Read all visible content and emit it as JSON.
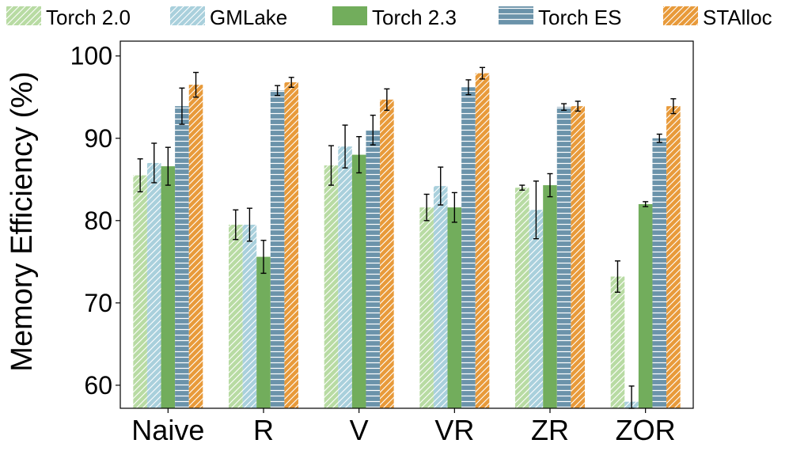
{
  "chart_data": {
    "type": "bar",
    "title": "",
    "xlabel": "",
    "ylabel": "Memory Efficiency (%)",
    "ylim": [
      57.2,
      101.8
    ],
    "yticks": [
      60,
      70,
      80,
      90,
      100
    ],
    "categories": [
      "Naive",
      "R",
      "V",
      "VR",
      "ZR",
      "ZOR"
    ],
    "grid": false,
    "legend_position": "top",
    "series": [
      {
        "name": "Torch 2.0",
        "color": "#b8dba3",
        "pattern": "diagonal-hatch",
        "values": [
          85.5,
          79.5,
          86.7,
          81.6,
          84.0,
          73.2
        ],
        "errors": [
          2.0,
          1.8,
          2.4,
          1.6,
          0.3,
          1.9
        ]
      },
      {
        "name": "GMLake",
        "color": "#a9d0dc",
        "pattern": "diagonal-hatch",
        "values": [
          87.0,
          79.5,
          89.0,
          84.2,
          81.3,
          58.0
        ],
        "errors": [
          2.4,
          2.0,
          2.6,
          2.3,
          3.5,
          1.9
        ]
      },
      {
        "name": "Torch 2.3",
        "color": "#72ad5c",
        "pattern": "solid",
        "values": [
          86.6,
          75.6,
          88.0,
          81.6,
          84.3,
          82.0
        ],
        "errors": [
          2.3,
          2.0,
          2.2,
          1.8,
          1.4,
          0.3
        ]
      },
      {
        "name": "Torch ES",
        "color": "#6b93aa",
        "pattern": "horizontal-lines",
        "values": [
          93.9,
          95.8,
          91.0,
          96.2,
          93.8,
          90.0
        ],
        "errors": [
          2.2,
          0.6,
          1.8,
          0.9,
          0.4,
          0.5
        ]
      },
      {
        "name": "STAlloc",
        "color": "#e89a3a",
        "pattern": "diagonal-hatch",
        "values": [
          96.5,
          96.8,
          94.7,
          97.9,
          93.9,
          93.9
        ],
        "errors": [
          1.5,
          0.6,
          1.3,
          0.7,
          0.6,
          0.9
        ]
      }
    ]
  }
}
